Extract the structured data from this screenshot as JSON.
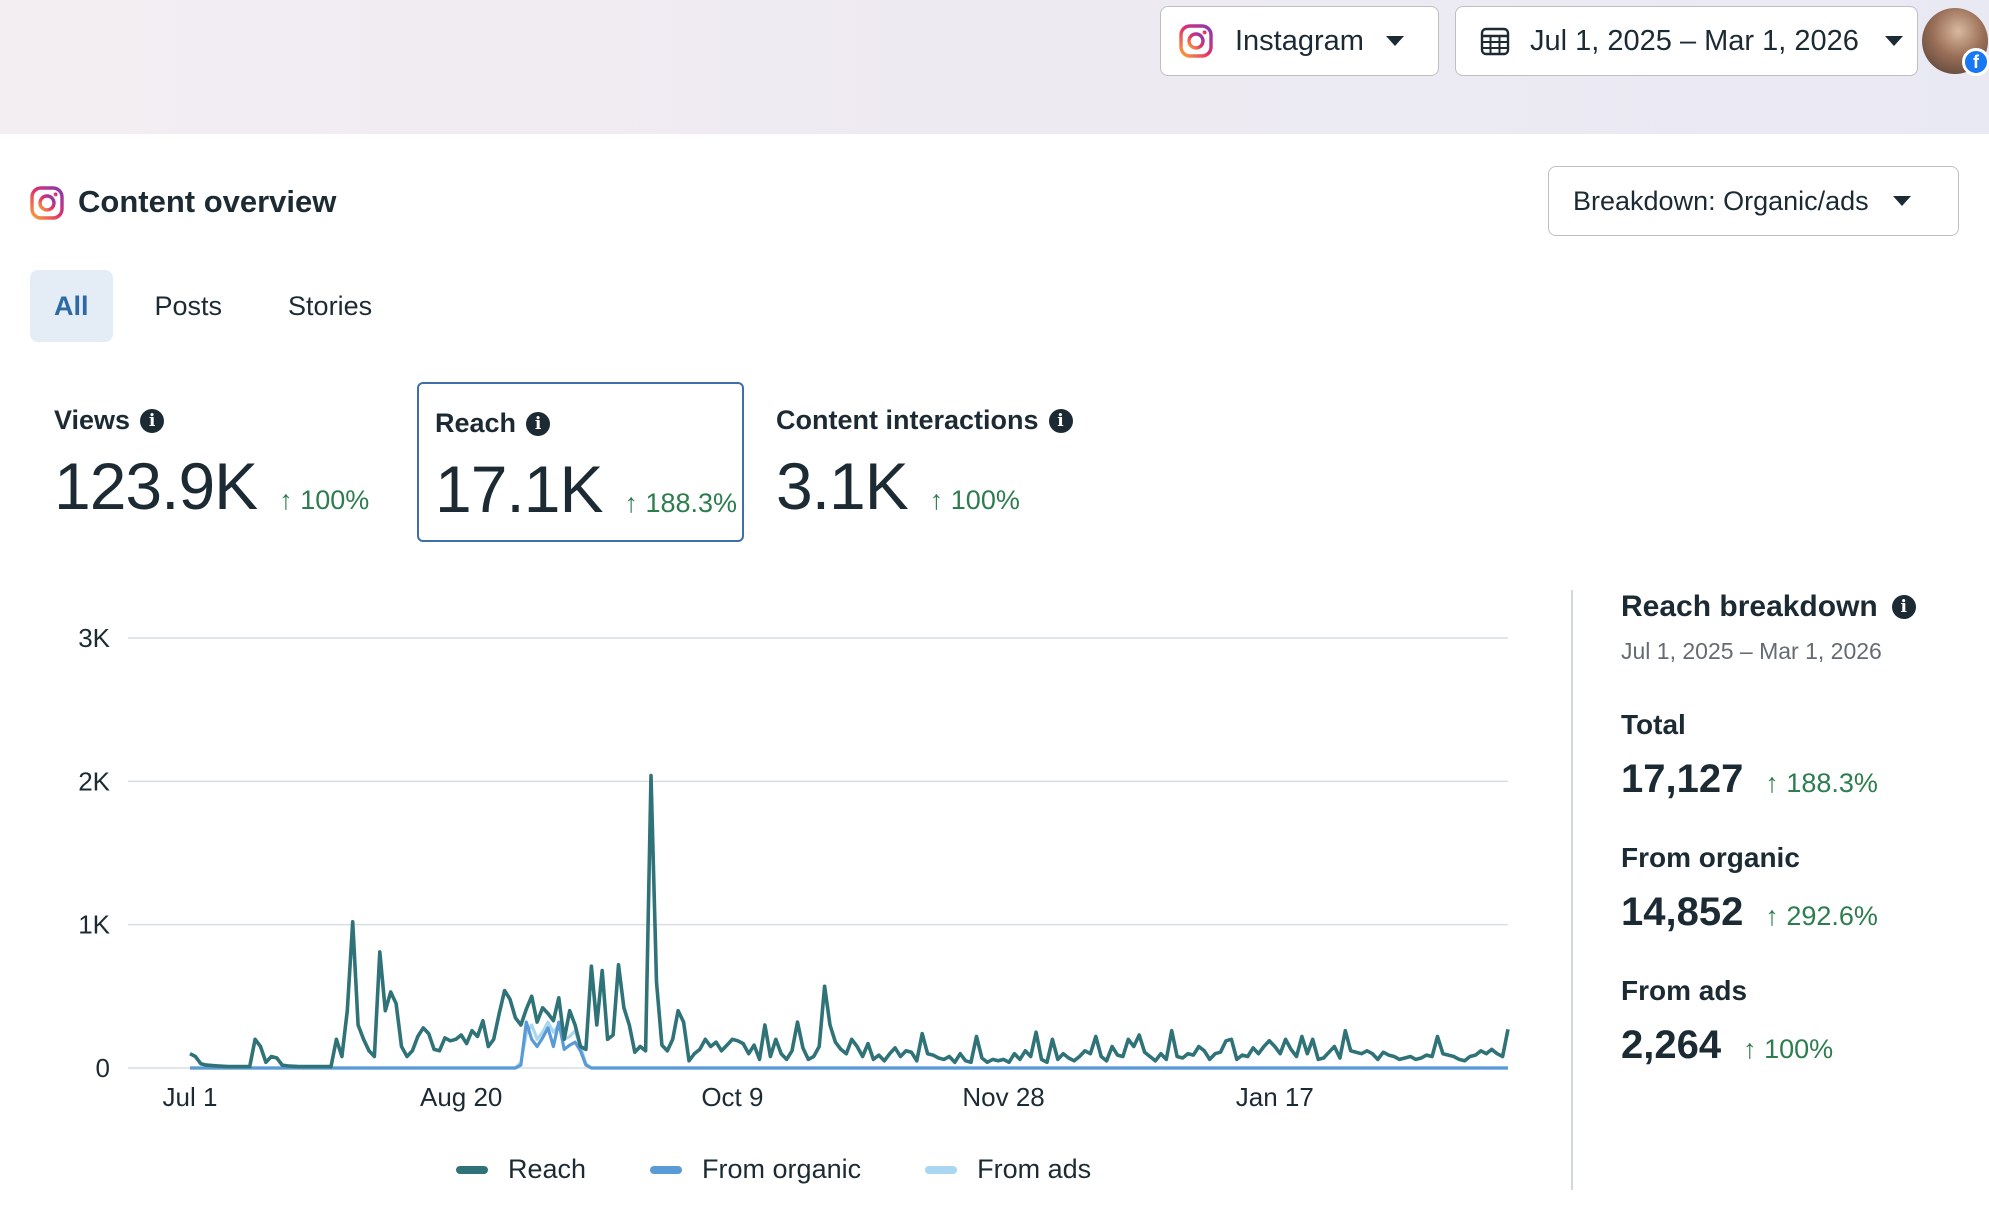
{
  "header": {
    "platform_label": "Instagram",
    "date_range": "Jul 1, 2025 – Mar 1, 2026"
  },
  "overview": {
    "title": "Content overview",
    "breakdown_label": "Breakdown: Organic/ads",
    "tabs": [
      {
        "label": "All",
        "active": true
      },
      {
        "label": "Posts",
        "active": false
      },
      {
        "label": "Stories",
        "active": false
      }
    ]
  },
  "metrics": {
    "views": {
      "label": "Views",
      "value": "123.9K",
      "delta": "↑ 100%"
    },
    "reach": {
      "label": "Reach",
      "value": "17.1K",
      "delta": "↑ 188.3%"
    },
    "interactions": {
      "label": "Content interactions",
      "value": "3.1K",
      "delta": "↑ 100%"
    }
  },
  "breakdown": {
    "title": "Reach breakdown",
    "date_range": "Jul 1, 2025 – Mar 1, 2026",
    "total_label": "Total",
    "total_value": "17,127",
    "total_delta": "↑ 188.3%",
    "organic_label": "From organic",
    "organic_value": "14,852",
    "organic_delta": "↑ 292.6%",
    "ads_label": "From ads",
    "ads_value": "2,264",
    "ads_delta": "↑ 100%"
  },
  "colors": {
    "reach": "#2f7379",
    "organic": "#5b9bd5",
    "ads": "#a9d6f0",
    "positive": "#2e7d4f",
    "accent": "#3f6fa8"
  },
  "chart_data": {
    "type": "line",
    "x_ticks": [
      "Jul 1",
      "Aug 20",
      "Oct 9",
      "Nov 28",
      "Jan 17"
    ],
    "y_ticks": [
      "0",
      "1K",
      "2K",
      "3K"
    ],
    "ylim": [
      0,
      3000
    ],
    "x_range_days": [
      0,
      243
    ],
    "legend": [
      "Reach",
      "From organic",
      "From ads"
    ],
    "legend_position": "bottom",
    "grid": true,
    "series": [
      {
        "name": "Reach",
        "points": [
          [
            0,
            100
          ],
          [
            1,
            80
          ],
          [
            2,
            30
          ],
          [
            3,
            20
          ],
          [
            5,
            15
          ],
          [
            7,
            10
          ],
          [
            9,
            10
          ],
          [
            11,
            10
          ],
          [
            12,
            200
          ],
          [
            13,
            150
          ],
          [
            14,
            40
          ],
          [
            15,
            80
          ],
          [
            16,
            70
          ],
          [
            17,
            20
          ],
          [
            18,
            15
          ],
          [
            20,
            10
          ],
          [
            23,
            10
          ],
          [
            26,
            10
          ],
          [
            27,
            200
          ],
          [
            28,
            80
          ],
          [
            29,
            400
          ],
          [
            30,
            1020
          ],
          [
            31,
            300
          ],
          [
            32,
            200
          ],
          [
            33,
            120
          ],
          [
            34,
            80
          ],
          [
            35,
            810
          ],
          [
            36,
            400
          ],
          [
            37,
            530
          ],
          [
            38,
            450
          ],
          [
            39,
            150
          ],
          [
            40,
            80
          ],
          [
            41,
            120
          ],
          [
            42,
            220
          ],
          [
            43,
            280
          ],
          [
            44,
            240
          ],
          [
            45,
            130
          ],
          [
            46,
            120
          ],
          [
            47,
            210
          ],
          [
            48,
            190
          ],
          [
            49,
            200
          ],
          [
            50,
            230
          ],
          [
            51,
            170
          ],
          [
            52,
            260
          ],
          [
            53,
            220
          ],
          [
            54,
            330
          ],
          [
            55,
            150
          ],
          [
            56,
            200
          ],
          [
            57,
            380
          ],
          [
            58,
            540
          ],
          [
            59,
            480
          ],
          [
            60,
            350
          ],
          [
            61,
            300
          ],
          [
            62,
            410
          ],
          [
            63,
            500
          ],
          [
            64,
            320
          ],
          [
            65,
            420
          ],
          [
            66,
            380
          ],
          [
            67,
            330
          ],
          [
            68,
            490
          ],
          [
            69,
            200
          ],
          [
            70,
            400
          ],
          [
            71,
            300
          ],
          [
            72,
            150
          ],
          [
            73,
            130
          ],
          [
            74,
            710
          ],
          [
            75,
            300
          ],
          [
            76,
            680
          ],
          [
            77,
            200
          ],
          [
            78,
            230
          ],
          [
            79,
            720
          ],
          [
            80,
            420
          ],
          [
            81,
            300
          ],
          [
            82,
            110
          ],
          [
            83,
            150
          ],
          [
            84,
            120
          ],
          [
            85,
            2040
          ],
          [
            86,
            600
          ],
          [
            87,
            160
          ],
          [
            88,
            120
          ],
          [
            89,
            200
          ],
          [
            90,
            400
          ],
          [
            91,
            320
          ],
          [
            92,
            50
          ],
          [
            93,
            100
          ],
          [
            94,
            130
          ],
          [
            95,
            200
          ],
          [
            96,
            150
          ],
          [
            97,
            180
          ],
          [
            98,
            120
          ],
          [
            99,
            160
          ],
          [
            100,
            200
          ],
          [
            101,
            190
          ],
          [
            102,
            170
          ],
          [
            103,
            100
          ],
          [
            104,
            160
          ],
          [
            105,
            60
          ],
          [
            106,
            300
          ],
          [
            107,
            80
          ],
          [
            108,
            200
          ],
          [
            109,
            100
          ],
          [
            110,
            60
          ],
          [
            111,
            120
          ],
          [
            112,
            320
          ],
          [
            113,
            140
          ],
          [
            114,
            60
          ],
          [
            115,
            80
          ],
          [
            116,
            150
          ],
          [
            117,
            570
          ],
          [
            118,
            300
          ],
          [
            119,
            180
          ],
          [
            120,
            130
          ],
          [
            121,
            100
          ],
          [
            122,
            200
          ],
          [
            123,
            150
          ],
          [
            124,
            80
          ],
          [
            125,
            170
          ],
          [
            126,
            60
          ],
          [
            127,
            90
          ],
          [
            128,
            50
          ],
          [
            129,
            100
          ],
          [
            130,
            140
          ],
          [
            131,
            80
          ],
          [
            132,
            120
          ],
          [
            133,
            110
          ],
          [
            134,
            50
          ],
          [
            135,
            240
          ],
          [
            136,
            100
          ],
          [
            137,
            90
          ],
          [
            138,
            70
          ],
          [
            139,
            60
          ],
          [
            140,
            80
          ],
          [
            141,
            40
          ],
          [
            142,
            100
          ],
          [
            143,
            50
          ],
          [
            144,
            40
          ],
          [
            145,
            220
          ],
          [
            146,
            70
          ],
          [
            147,
            40
          ],
          [
            148,
            60
          ],
          [
            149,
            50
          ],
          [
            150,
            60
          ],
          [
            151,
            40
          ],
          [
            152,
            100
          ],
          [
            153,
            60
          ],
          [
            154,
            120
          ],
          [
            155,
            80
          ],
          [
            156,
            250
          ],
          [
            157,
            60
          ],
          [
            158,
            40
          ],
          [
            159,
            200
          ],
          [
            160,
            60
          ],
          [
            161,
            100
          ],
          [
            162,
            70
          ],
          [
            163,
            50
          ],
          [
            164,
            80
          ],
          [
            165,
            120
          ],
          [
            166,
            100
          ],
          [
            167,
            220
          ],
          [
            168,
            80
          ],
          [
            169,
            50
          ],
          [
            170,
            150
          ],
          [
            171,
            90
          ],
          [
            172,
            80
          ],
          [
            173,
            200
          ],
          [
            174,
            150
          ],
          [
            175,
            230
          ],
          [
            176,
            110
          ],
          [
            177,
            80
          ],
          [
            178,
            50
          ],
          [
            179,
            100
          ],
          [
            180,
            60
          ],
          [
            181,
            260
          ],
          [
            182,
            80
          ],
          [
            183,
            70
          ],
          [
            184,
            100
          ],
          [
            185,
            90
          ],
          [
            186,
            150
          ],
          [
            187,
            120
          ],
          [
            188,
            60
          ],
          [
            189,
            100
          ],
          [
            190,
            110
          ],
          [
            191,
            190
          ],
          [
            192,
            200
          ],
          [
            193,
            60
          ],
          [
            194,
            90
          ],
          [
            195,
            80
          ],
          [
            196,
            140
          ],
          [
            197,
            100
          ],
          [
            198,
            150
          ],
          [
            199,
            190
          ],
          [
            200,
            150
          ],
          [
            201,
            100
          ],
          [
            202,
            200
          ],
          [
            203,
            130
          ],
          [
            204,
            80
          ],
          [
            205,
            220
          ],
          [
            206,
            100
          ],
          [
            207,
            200
          ],
          [
            208,
            60
          ],
          [
            209,
            70
          ],
          [
            210,
            110
          ],
          [
            211,
            150
          ],
          [
            212,
            70
          ],
          [
            213,
            260
          ],
          [
            214,
            120
          ],
          [
            215,
            110
          ],
          [
            216,
            100
          ],
          [
            217,
            120
          ],
          [
            218,
            100
          ],
          [
            219,
            60
          ],
          [
            220,
            110
          ],
          [
            221,
            90
          ],
          [
            222,
            80
          ],
          [
            223,
            60
          ],
          [
            224,
            70
          ],
          [
            225,
            80
          ],
          [
            226,
            60
          ],
          [
            227,
            70
          ],
          [
            228,
            90
          ],
          [
            229,
            80
          ],
          [
            230,
            220
          ],
          [
            231,
            100
          ],
          [
            232,
            90
          ],
          [
            233,
            80
          ],
          [
            234,
            60
          ],
          [
            235,
            50
          ],
          [
            236,
            80
          ],
          [
            237,
            90
          ],
          [
            238,
            120
          ],
          [
            239,
            100
          ],
          [
            240,
            130
          ],
          [
            241,
            100
          ],
          [
            242,
            80
          ],
          [
            243,
            270
          ]
        ]
      },
      {
        "name": "From organic",
        "points": [
          [
            0,
            0
          ],
          [
            60,
            0
          ],
          [
            61,
            20
          ],
          [
            62,
            320
          ],
          [
            63,
            200
          ],
          [
            64,
            150
          ],
          [
            65,
            210
          ],
          [
            66,
            280
          ],
          [
            67,
            150
          ],
          [
            68,
            320
          ],
          [
            69,
            130
          ],
          [
            70,
            160
          ],
          [
            71,
            180
          ],
          [
            72,
            120
          ],
          [
            73,
            20
          ],
          [
            74,
            0
          ],
          [
            243,
            0
          ]
        ]
      },
      {
        "name": "From ads",
        "points": [
          [
            0,
            0
          ],
          [
            60,
            0
          ],
          [
            61,
            40
          ],
          [
            62,
            240
          ],
          [
            63,
            300
          ],
          [
            64,
            200
          ],
          [
            65,
            250
          ],
          [
            66,
            320
          ],
          [
            67,
            250
          ],
          [
            68,
            300
          ],
          [
            69,
            200
          ],
          [
            70,
            220
          ],
          [
            71,
            260
          ],
          [
            72,
            150
          ],
          [
            73,
            30
          ],
          [
            74,
            0
          ],
          [
            243,
            0
          ]
        ]
      }
    ]
  }
}
